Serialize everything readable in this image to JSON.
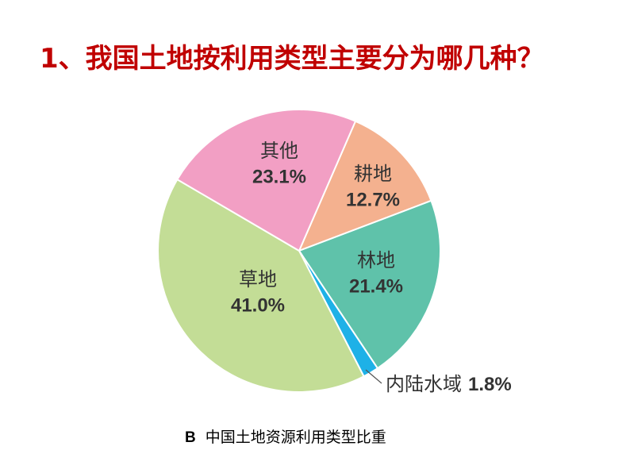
{
  "slide": {
    "title": "1、我国土地按利用类型主要分为哪几种？",
    "title_color": "#C00000"
  },
  "figure_label": "B",
  "chart_data": {
    "type": "pie",
    "title": "中国土地资源利用类型比重",
    "categories": [
      "耕地",
      "林地",
      "内陆水域",
      "草地",
      "其他"
    ],
    "values": [
      12.7,
      21.4,
      1.8,
      41.0,
      23.1
    ],
    "value_labels": [
      "12.7%",
      "21.4%",
      "1.8%",
      "41.0%",
      "23.1%"
    ],
    "colors": [
      "#F4B18F",
      "#5FC2AA",
      "#1EB1E7",
      "#C3DD96",
      "#F29FC4"
    ],
    "legend": "none"
  }
}
